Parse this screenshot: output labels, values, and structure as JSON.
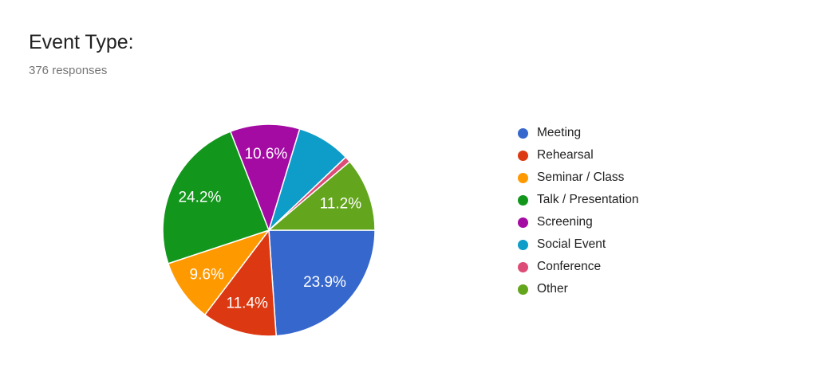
{
  "header": {
    "title": "Event Type:",
    "subtitle": "376 responses"
  },
  "chart_data": {
    "type": "pie",
    "title": "Event Type:",
    "subtitle": "376 responses",
    "legend_position": "right",
    "slice_label_color": "#ffffff",
    "slice_border_color": "#ffffff",
    "start_angle": "3-oclock-clockwise",
    "slices": [
      {
        "label": "Meeting",
        "value_pct": 23.9,
        "display": "23.9%",
        "label_shown": true,
        "color": "#3667CD"
      },
      {
        "label": "Rehearsal",
        "value_pct": 11.4,
        "display": "11.4%",
        "label_shown": true,
        "color": "#DC3912"
      },
      {
        "label": "Seminar / Class",
        "value_pct": 9.6,
        "display": "9.6%",
        "label_shown": true,
        "color": "#FF9900"
      },
      {
        "label": "Talk / Presentation",
        "value_pct": 24.2,
        "display": "24.2%",
        "label_shown": true,
        "color": "#12961C"
      },
      {
        "label": "Screening",
        "value_pct": 10.6,
        "display": "10.6%",
        "label_shown": true,
        "color": "#A30BA3"
      },
      {
        "label": "Social Event",
        "value_pct": 8.2,
        "display": "",
        "label_shown": false,
        "estimated": true,
        "color": "#0E9CC8"
      },
      {
        "label": "Conference",
        "value_pct": 0.9,
        "display": "",
        "label_shown": false,
        "estimated": true,
        "color": "#DD4C77"
      },
      {
        "label": "Other",
        "value_pct": 11.2,
        "display": "11.2%",
        "label_shown": true,
        "color": "#63A51C"
      }
    ]
  }
}
